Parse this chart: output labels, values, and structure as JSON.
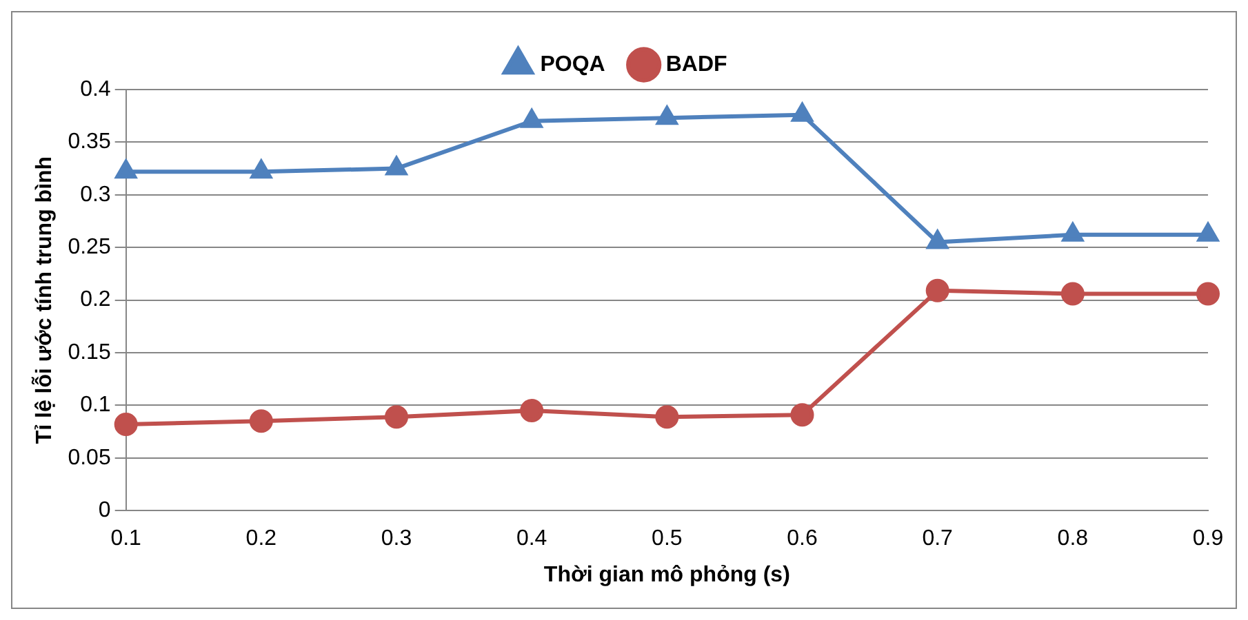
{
  "chart_data": {
    "type": "line",
    "xlabel": "Thời gian mô phỏng (s)",
    "ylabel": "Tỉ lệ lỗi ước tính trung bình",
    "categories": [
      "0.1",
      "0.2",
      "0.3",
      "0.4",
      "0.5",
      "0.6",
      "0.7",
      "0.8",
      "0.9"
    ],
    "series": [
      {
        "name": "POQA",
        "color": "#4f81bd",
        "marker": "triangle",
        "values": [
          0.322,
          0.322,
          0.325,
          0.37,
          0.373,
          0.376,
          0.255,
          0.262,
          0.262
        ]
      },
      {
        "name": "BADF",
        "color": "#c0504d",
        "marker": "circle",
        "values": [
          0.082,
          0.085,
          0.089,
          0.095,
          0.089,
          0.091,
          0.209,
          0.206,
          0.206
        ]
      }
    ],
    "ylim": [
      0,
      0.4
    ],
    "yticks": [
      0,
      0.05,
      0.1,
      0.15,
      0.2,
      0.25,
      0.3,
      0.35,
      0.4
    ],
    "grid": "y",
    "legend": "top"
  }
}
